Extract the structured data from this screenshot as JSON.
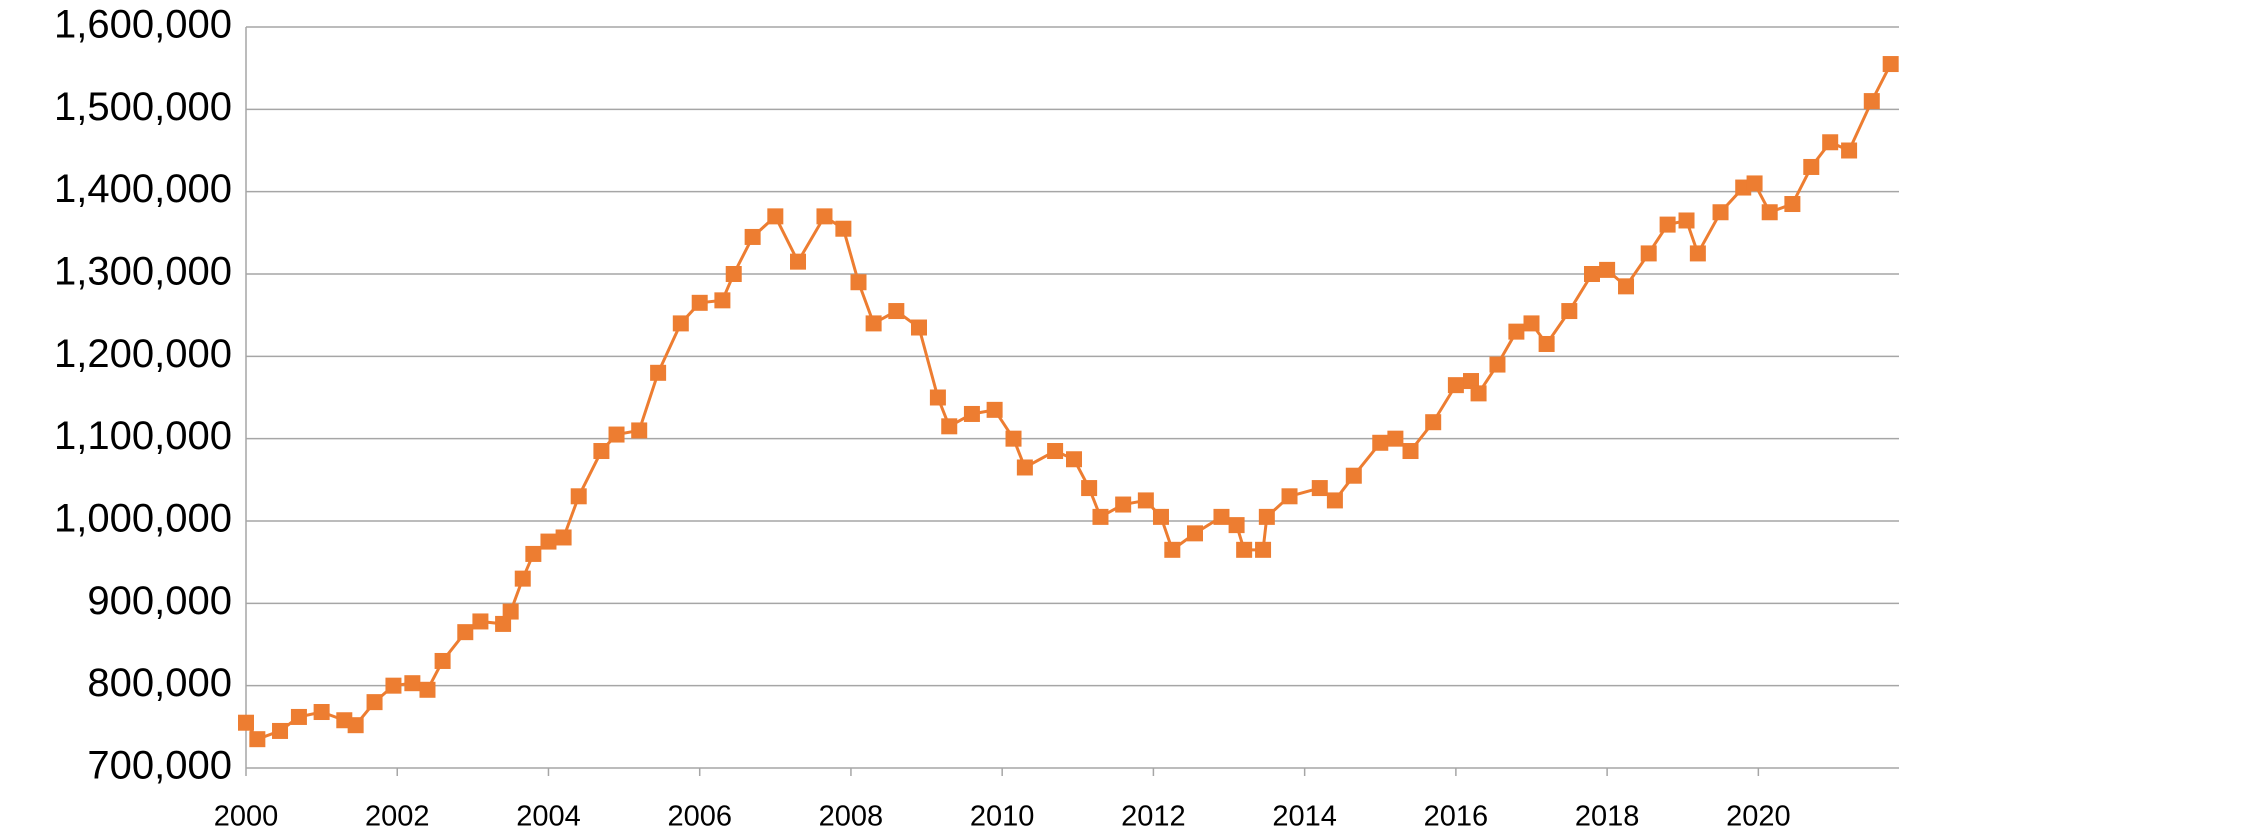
{
  "chart_data": {
    "type": "line",
    "color": "#ed7d31",
    "grid": true,
    "x": [
      2000,
      2000.15,
      2000.45,
      2000.7,
      2001.0,
      2001.3,
      2001.45,
      2001.7,
      2001.95,
      2002.2,
      2002.4,
      2002.6,
      2002.9,
      2003.1,
      2003.4,
      2003.5,
      2003.66,
      2003.8,
      2004.0,
      2004.2,
      2004.4,
      2004.7,
      2004.9,
      2005.2,
      2005.45,
      2005.75,
      2006.0,
      2006.3,
      2006.45,
      2006.7,
      2007.0,
      2007.3,
      2007.65,
      2007.9,
      2008.1,
      2008.3,
      2008.6,
      2008.9,
      2009.15,
      2009.3,
      2009.6,
      2009.9,
      2010.15,
      2010.3,
      2010.7,
      2010.95,
      2011.15,
      2011.3,
      2011.6,
      2011.9,
      2012.1,
      2012.25,
      2012.55,
      2012.9,
      2013.1,
      2013.2,
      2013.45,
      2013.5,
      2013.8,
      2014.2,
      2014.4,
      2014.65,
      2015.0,
      2015.2,
      2015.4,
      2015.7,
      2016.0,
      2016.2,
      2016.3,
      2016.55,
      2016.8,
      2017.0,
      2017.2,
      2017.5,
      2017.8,
      2018.0,
      2018.25,
      2018.55,
      2018.8,
      2019.05,
      2019.2,
      2019.5,
      2019.8,
      2019.95,
      2020.15,
      2020.45,
      2020.7,
      2020.95,
      2021.2,
      2021.5,
      2021.75
    ],
    "values": [
      755000,
      735000,
      745000,
      762000,
      768000,
      758000,
      752000,
      780000,
      800000,
      803000,
      795000,
      830000,
      865000,
      878000,
      875000,
      890000,
      930000,
      960000,
      975000,
      980000,
      1030000,
      1085000,
      1105000,
      1110000,
      1180000,
      1240000,
      1265000,
      1268000,
      1300000,
      1345000,
      1370000,
      1315000,
      1370000,
      1355000,
      1290000,
      1240000,
      1255000,
      1235000,
      1150000,
      1115000,
      1130000,
      1135000,
      1100000,
      1065000,
      1085000,
      1075000,
      1040000,
      1005000,
      1020000,
      1025000,
      1005000,
      965000,
      985000,
      1005000,
      995000,
      965000,
      965000,
      1005000,
      1030000,
      1040000,
      1025000,
      1055000,
      1095000,
      1100000,
      1085000,
      1120000,
      1165000,
      1170000,
      1155000,
      1190000,
      1230000,
      1240000,
      1215000,
      1255000,
      1300000,
      1305000,
      1285000,
      1325000,
      1360000,
      1365000,
      1325000,
      1375000,
      1405000,
      1410000,
      1375000,
      1385000,
      1430000,
      1460000,
      1450000,
      1510000,
      1555000
    ],
    "xlim": [
      2000,
      2021.86
    ],
    "xticks": [
      2000,
      2002,
      2004,
      2006,
      2008,
      2010,
      2012,
      2014,
      2016,
      2018,
      2020
    ],
    "ylim": [
      700000,
      1600000
    ],
    "yticks": [
      {
        "value": 700000,
        "label": "700,000"
      },
      {
        "value": 800000,
        "label": "800,000"
      },
      {
        "value": 900000,
        "label": "900,000"
      },
      {
        "value": 1000000,
        "label": "1,000,000"
      },
      {
        "value": 1100000,
        "label": "1,100,000"
      },
      {
        "value": 1200000,
        "label": "1,200,000"
      },
      {
        "value": 1300000,
        "label": "1,300,000"
      },
      {
        "value": 1400000,
        "label": "1,400,000"
      },
      {
        "value": 1500000,
        "label": "1,500,000"
      },
      {
        "value": 1600000,
        "label": "1,600,000"
      }
    ]
  }
}
